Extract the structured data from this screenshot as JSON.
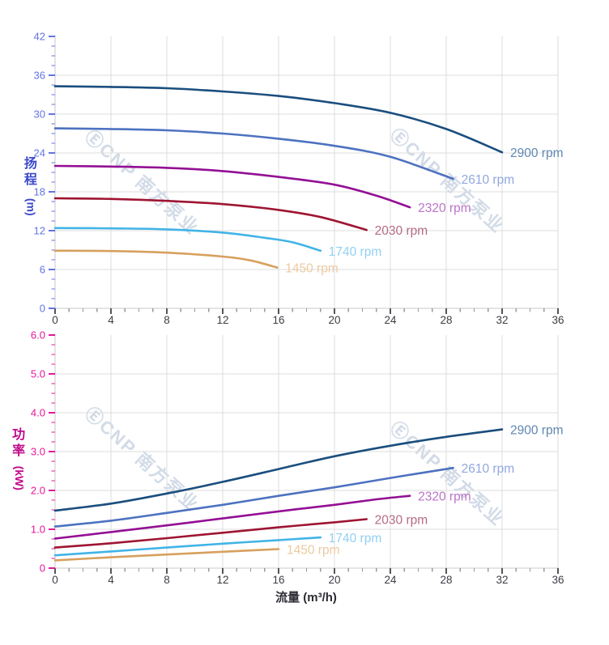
{
  "watermark": {
    "text": "ⒺCNP 南方泵业",
    "color": "rgba(173,190,211,0.55)"
  },
  "style": {
    "grid_color": "#dcdcdc",
    "axis_line_color": "#c8c8c8",
    "x_tick_color": "#55555d",
    "x_minor_tick_color": "#9a9aa2",
    "x_tick_label_color": "#3d3d45",
    "flow_title_color": "#2b2b33",
    "head_axis_color": "#6274e0",
    "head_title_color": "#3b49cb",
    "power_axis_color": "#e5179a",
    "power_title_color": "#bf0a8c"
  },
  "chart_data": [
    {
      "type": "line",
      "title": "",
      "xlabel": "流量 (m³/h)",
      "ylabel": "扬程 (m)",
      "ylabel_cn": "扬程",
      "ylabel_unit": "(m)",
      "xlim": [
        0,
        36
      ],
      "ylim": [
        0,
        42
      ],
      "x_major": 4,
      "x_minor": 1,
      "y_major": 6,
      "y_minor": 1.5,
      "x_tick_labels": [
        "0",
        "4",
        "8",
        "12",
        "16",
        "20",
        "24",
        "28",
        "32",
        "36"
      ],
      "y_tick_labels": [
        "0",
        "6",
        "12",
        "18",
        "24",
        "30",
        "36",
        "42"
      ],
      "grid": true,
      "legend_position": "curve-ends",
      "series": [
        {
          "name": "2900 rpm",
          "color": "#1a4e7e",
          "label_color": "#5f87b2",
          "points": [
            [
              0,
              34.3
            ],
            [
              4,
              34.2
            ],
            [
              8,
              34.0
            ],
            [
              12,
              33.5
            ],
            [
              16,
              32.8
            ],
            [
              20,
              31.7
            ],
            [
              24,
              30.2
            ],
            [
              28,
              27.7
            ],
            [
              32,
              24.1
            ]
          ]
        },
        {
          "name": "2610 rpm",
          "color": "#4d72c0",
          "label_color": "#90a8de",
          "points": [
            [
              0,
              27.8
            ],
            [
              4,
              27.7
            ],
            [
              8,
              27.5
            ],
            [
              12,
              27.0
            ],
            [
              16,
              26.2
            ],
            [
              20,
              25.1
            ],
            [
              24,
              23.4
            ],
            [
              28.5,
              20.0
            ]
          ]
        },
        {
          "name": "2320 rpm",
          "color": "#930f94",
          "label_color": "#bb74c8",
          "points": [
            [
              0,
              22.0
            ],
            [
              4,
              21.9
            ],
            [
              8,
              21.7
            ],
            [
              12,
              21.2
            ],
            [
              16,
              20.3
            ],
            [
              20,
              19.1
            ],
            [
              23,
              17.4
            ],
            [
              25.4,
              15.6
            ]
          ]
        },
        {
          "name": "2030 rpm",
          "color": "#9e1532",
          "label_color": "#b56c82",
          "points": [
            [
              0,
              17.0
            ],
            [
              4,
              16.9
            ],
            [
              8,
              16.6
            ],
            [
              12,
              16.1
            ],
            [
              16,
              15.2
            ],
            [
              19,
              14.1
            ],
            [
              22.3,
              12.1
            ]
          ]
        },
        {
          "name": "1740 rpm",
          "color": "#41b4e6",
          "label_color": "#92d0f0",
          "points": [
            [
              0,
              12.4
            ],
            [
              4,
              12.35
            ],
            [
              8,
              12.2
            ],
            [
              12,
              11.7
            ],
            [
              15,
              10.9
            ],
            [
              17,
              10.2
            ],
            [
              19,
              8.9
            ]
          ]
        },
        {
          "name": "1450 rpm",
          "color": "#d7a05e",
          "label_color": "#eccaa0",
          "points": [
            [
              0,
              8.9
            ],
            [
              4,
              8.85
            ],
            [
              8,
              8.6
            ],
            [
              12,
              8.0
            ],
            [
              14,
              7.4
            ],
            [
              15.9,
              6.3
            ]
          ]
        }
      ]
    },
    {
      "type": "line",
      "title": "",
      "xlabel": "流量 (m³/h)",
      "ylabel": "功率 (kW)",
      "ylabel_cn": "功率",
      "ylabel_unit": "(kW)",
      "xlim": [
        0,
        36
      ],
      "ylim": [
        0,
        6
      ],
      "x_major": 4,
      "x_minor": 1,
      "y_major": 1,
      "y_minor": 0.25,
      "x_tick_labels": [
        "0",
        "4",
        "8",
        "12",
        "16",
        "20",
        "24",
        "28",
        "32",
        "36"
      ],
      "y_tick_labels": [
        "0",
        "1.0",
        "2.0",
        "3.0",
        "4.0",
        "5.0",
        "6.0"
      ],
      "grid": true,
      "legend_position": "curve-ends",
      "series": [
        {
          "name": "2900 rpm",
          "color": "#1a4e7e",
          "label_color": "#5f87b2",
          "points": [
            [
              0,
              1.48
            ],
            [
              4,
              1.66
            ],
            [
              8,
              1.92
            ],
            [
              12,
              2.22
            ],
            [
              16,
              2.55
            ],
            [
              20,
              2.88
            ],
            [
              24,
              3.15
            ],
            [
              28,
              3.38
            ],
            [
              32,
              3.57
            ]
          ]
        },
        {
          "name": "2610 rpm",
          "color": "#4d72c0",
          "label_color": "#90a8de",
          "points": [
            [
              0,
              1.07
            ],
            [
              4,
              1.22
            ],
            [
              8,
              1.42
            ],
            [
              12,
              1.63
            ],
            [
              16,
              1.86
            ],
            [
              20,
              2.08
            ],
            [
              24,
              2.32
            ],
            [
              28.5,
              2.58
            ]
          ]
        },
        {
          "name": "2320 rpm",
          "color": "#930f94",
          "label_color": "#bb74c8",
          "points": [
            [
              0,
              0.76
            ],
            [
              4,
              0.93
            ],
            [
              8,
              1.1
            ],
            [
              12,
              1.28
            ],
            [
              16,
              1.46
            ],
            [
              20,
              1.63
            ],
            [
              23,
              1.77
            ],
            [
              25.4,
              1.86
            ]
          ]
        },
        {
          "name": "2030 rpm",
          "color": "#9e1532",
          "label_color": "#b56c82",
          "points": [
            [
              0,
              0.53
            ],
            [
              4,
              0.64
            ],
            [
              8,
              0.77
            ],
            [
              12,
              0.91
            ],
            [
              16,
              1.05
            ],
            [
              20,
              1.18
            ],
            [
              22.3,
              1.26
            ]
          ]
        },
        {
          "name": "1740 rpm",
          "color": "#41b4e6",
          "label_color": "#92d0f0",
          "points": [
            [
              0,
              0.33
            ],
            [
              4,
              0.43
            ],
            [
              8,
              0.53
            ],
            [
              12,
              0.63
            ],
            [
              16,
              0.72
            ],
            [
              19,
              0.79
            ]
          ]
        },
        {
          "name": "1450 rpm",
          "color": "#d7a05e",
          "label_color": "#eccaa0",
          "points": [
            [
              0,
              0.2
            ],
            [
              4,
              0.28
            ],
            [
              8,
              0.35
            ],
            [
              12,
              0.42
            ],
            [
              16,
              0.49
            ]
          ]
        }
      ]
    }
  ]
}
